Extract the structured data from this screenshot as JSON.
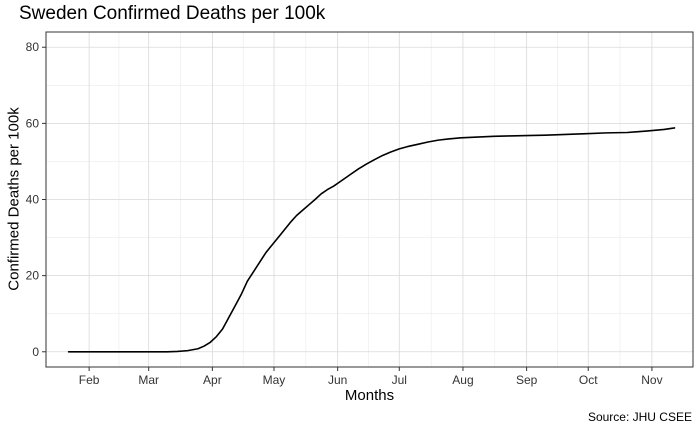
{
  "chart_data": {
    "type": "line",
    "title": "Sweden Confirmed Deaths per 100k",
    "xlabel": "Months",
    "ylabel": "Confirmed Deaths per 100k",
    "caption": "Source: JHU CSEE",
    "x_ticks": [
      "Feb",
      "Mar",
      "Apr",
      "May",
      "Jun",
      "Jul",
      "Aug",
      "Sep",
      "Oct",
      "Nov"
    ],
    "y_ticks": [
      0,
      20,
      40,
      60,
      80
    ],
    "ylim": [
      -4,
      84
    ],
    "xlim": [
      "2020-01-11",
      "2020-11-21"
    ],
    "grid": true,
    "series": [
      {
        "color": "#000000",
        "points": [
          [
            "2020-01-22",
            0
          ],
          [
            "2020-02-15",
            0
          ],
          [
            "2020-03-10",
            0
          ],
          [
            "2020-03-15",
            0.1
          ],
          [
            "2020-03-20",
            0.3
          ],
          [
            "2020-03-25",
            0.8
          ],
          [
            "2020-03-28",
            1.5
          ],
          [
            "2020-03-31",
            2.5
          ],
          [
            "2020-04-03",
            4.0
          ],
          [
            "2020-04-06",
            6.0
          ],
          [
            "2020-04-09",
            9.0
          ],
          [
            "2020-04-12",
            12.0
          ],
          [
            "2020-04-15",
            15.0
          ],
          [
            "2020-04-18",
            18.5
          ],
          [
            "2020-04-21",
            21.0
          ],
          [
            "2020-04-24",
            23.5
          ],
          [
            "2020-04-27",
            26.0
          ],
          [
            "2020-04-30",
            28.0
          ],
          [
            "2020-05-03",
            30.0
          ],
          [
            "2020-05-06",
            32.0
          ],
          [
            "2020-05-09",
            34.0
          ],
          [
            "2020-05-12",
            35.8
          ],
          [
            "2020-05-15",
            37.2
          ],
          [
            "2020-05-18",
            38.6
          ],
          [
            "2020-05-21",
            40.0
          ],
          [
            "2020-05-24",
            41.5
          ],
          [
            "2020-05-27",
            42.6
          ],
          [
            "2020-05-30",
            43.5
          ],
          [
            "2020-06-03",
            45.0
          ],
          [
            "2020-06-07",
            46.5
          ],
          [
            "2020-06-11",
            48.0
          ],
          [
            "2020-06-15",
            49.3
          ],
          [
            "2020-06-19",
            50.5
          ],
          [
            "2020-06-23",
            51.6
          ],
          [
            "2020-06-27",
            52.5
          ],
          [
            "2020-07-01",
            53.3
          ],
          [
            "2020-07-05",
            53.9
          ],
          [
            "2020-07-10",
            54.5
          ],
          [
            "2020-07-15",
            55.1
          ],
          [
            "2020-07-20",
            55.6
          ],
          [
            "2020-07-25",
            55.9
          ],
          [
            "2020-07-31",
            56.2
          ],
          [
            "2020-08-08",
            56.4
          ],
          [
            "2020-08-16",
            56.6
          ],
          [
            "2020-08-24",
            56.7
          ],
          [
            "2020-09-01",
            56.8
          ],
          [
            "2020-09-10",
            56.9
          ],
          [
            "2020-09-20",
            57.1
          ],
          [
            "2020-09-30",
            57.3
          ],
          [
            "2020-10-10",
            57.5
          ],
          [
            "2020-10-20",
            57.6
          ],
          [
            "2020-10-30",
            58.0
          ],
          [
            "2020-11-07",
            58.4
          ],
          [
            "2020-11-12",
            58.8
          ]
        ]
      }
    ]
  }
}
